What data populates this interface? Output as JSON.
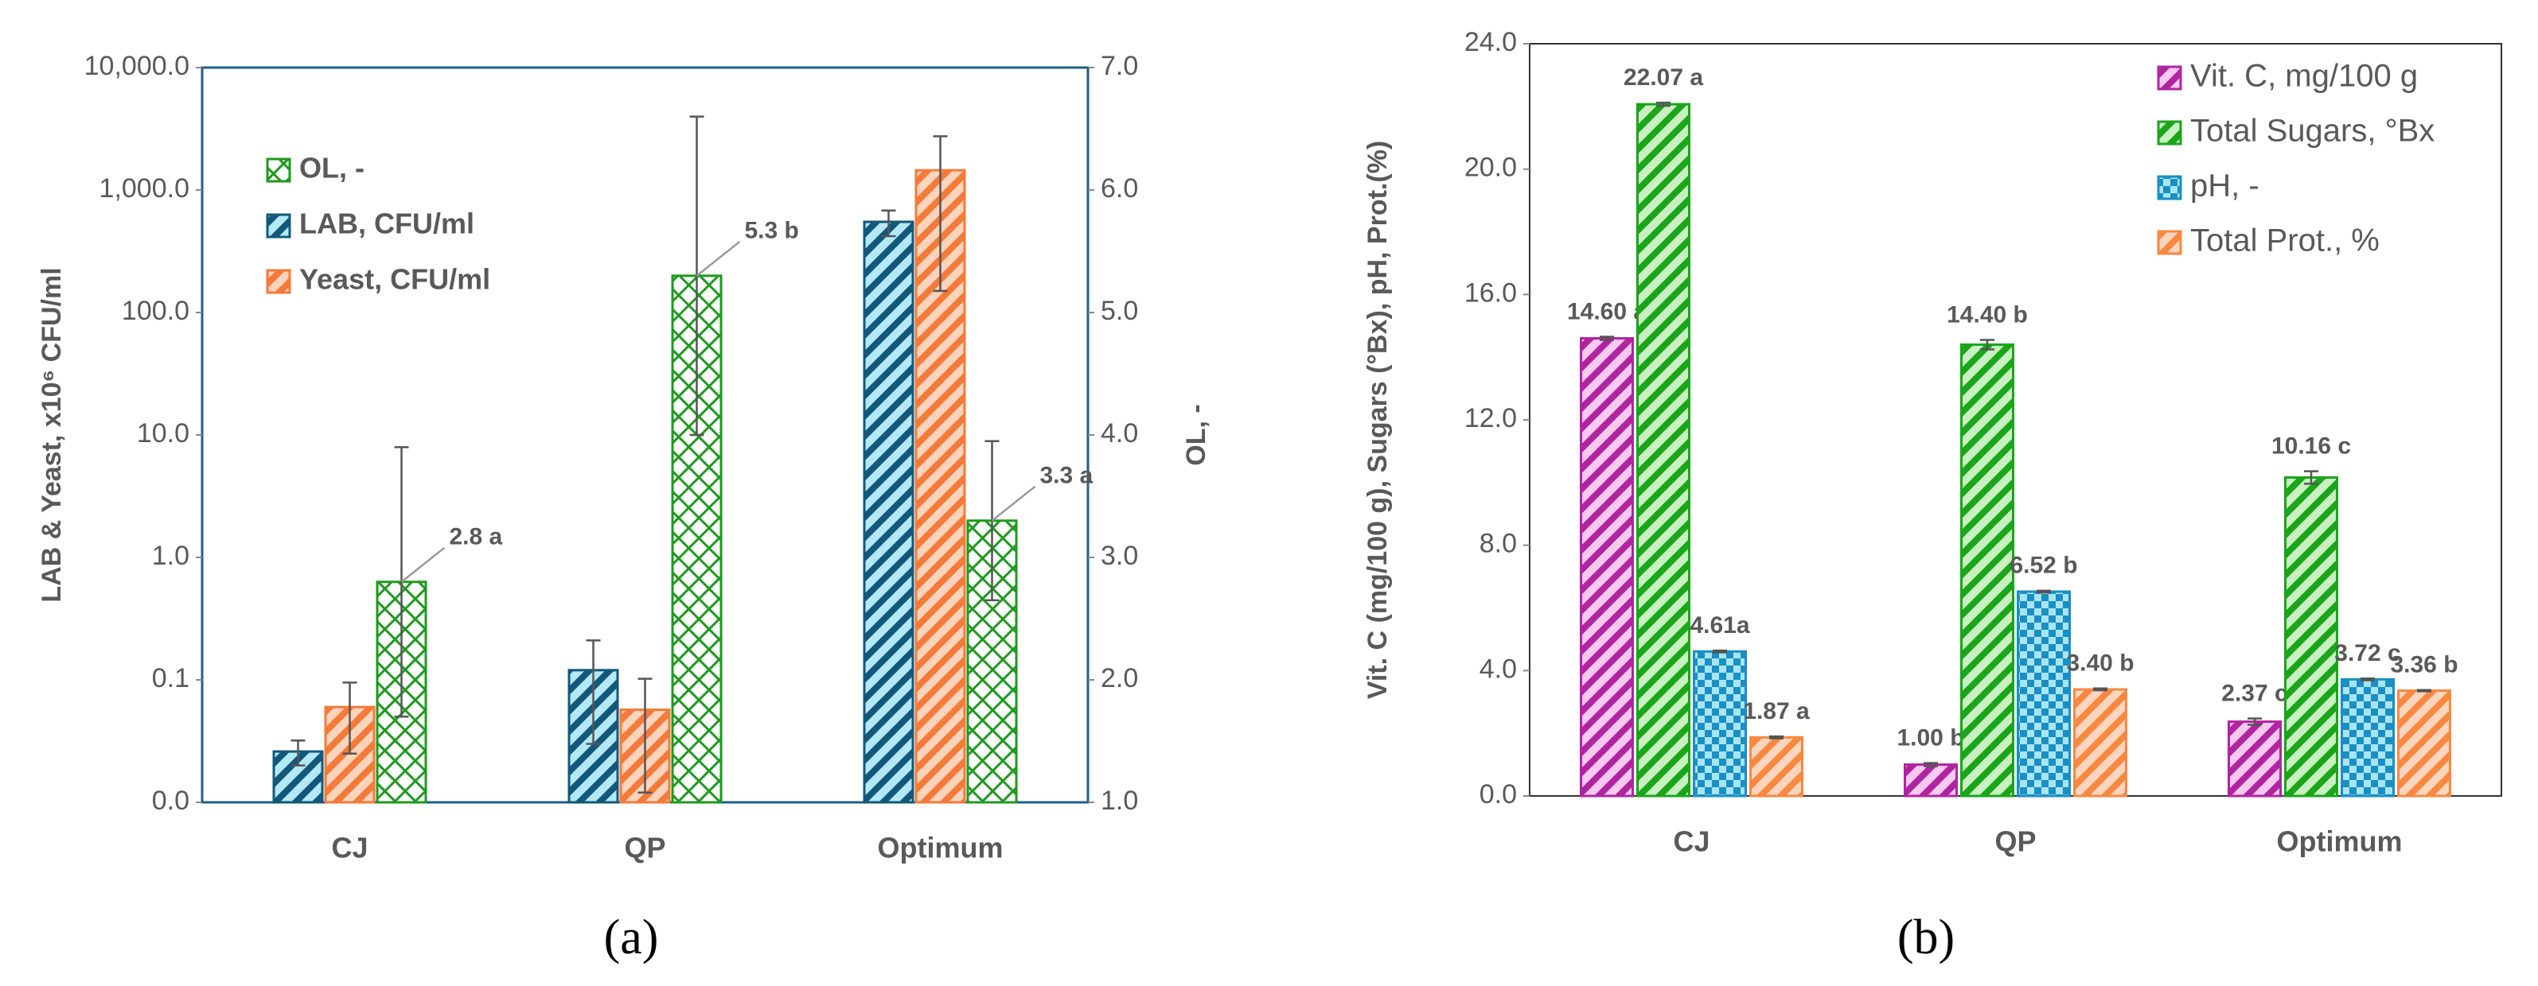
{
  "chart_data": [
    {
      "type": "bar",
      "caption": "(a)",
      "ylabel": "LAB & Yeast, x10⁶ CFU/ml",
      "y2label": "OL, -",
      "categories": [
        "CJ",
        "QP",
        "Optimum"
      ],
      "ylog": true,
      "legend": "upper left",
      "ylim": [
        0.01,
        10000
      ],
      "yticks": [
        {
          "value": 0.01,
          "label": "0.0"
        },
        {
          "value": 0.1,
          "label": "0.1"
        },
        {
          "value": 1,
          "label": "1.0"
        },
        {
          "value": 10,
          "label": "10.0"
        },
        {
          "value": 100,
          "label": "100.0"
        },
        {
          "value": 1000,
          "label": "1,000.0"
        },
        {
          "value": 10000,
          "label": "10,000.0"
        }
      ],
      "y2lim": [
        1,
        7
      ],
      "y2ticks": [
        {
          "value": 1,
          "label": "1.0"
        },
        {
          "value": 2,
          "label": "2.0"
        },
        {
          "value": 3,
          "label": "3.0"
        },
        {
          "value": 4,
          "label": "4.0"
        },
        {
          "value": 5,
          "label": "5.0"
        },
        {
          "value": 6,
          "label": "6.0"
        },
        {
          "value": 7,
          "label": "7.0"
        }
      ],
      "series": [
        {
          "name": "OL, -",
          "axis": "y2",
          "color": "#1e9a1e",
          "fill": "#ffffff",
          "pattern": "cross",
          "values": [
            2.8,
            5.3,
            3.3
          ],
          "errors": [
            1.1,
            1.3,
            0.65
          ],
          "value_labels": [
            "2.8 a",
            "5.3 b",
            "3.3 a"
          ]
        },
        {
          "name": "LAB, CFU/ml",
          "color": "#13587a",
          "fill": "#b3e8f7",
          "pattern": "stripes",
          "values": [
            0.026,
            0.12,
            550
          ],
          "errors": [
            0.006,
            0.09,
            130
          ]
        },
        {
          "name": "Yeast, CFU/ml",
          "color": "#f47a3a",
          "fill": "#fdd3bb",
          "pattern": "stripes",
          "values": [
            0.06,
            0.057,
            1450
          ],
          "errors": [
            0.035,
            0.045,
            1300
          ]
        }
      ]
    },
    {
      "type": "bar",
      "caption": "(b)",
      "ylabel": "Vit. C (mg/100 g), Sugars (°Bx), pH, Prot.(%)",
      "categories": [
        "CJ",
        "QP",
        "Optimum"
      ],
      "legend": "upper right",
      "ylim": [
        0,
        24
      ],
      "yticks": [
        {
          "value": 0,
          "label": "0.0"
        },
        {
          "value": 4,
          "label": "4.0"
        },
        {
          "value": 8,
          "label": "8.0"
        },
        {
          "value": 12,
          "label": "12.0"
        },
        {
          "value": 16,
          "label": "16.0"
        },
        {
          "value": 20,
          "label": "20.0"
        },
        {
          "value": 24,
          "label": "24.0"
        }
      ],
      "series": [
        {
          "name": "Vit. C, mg/100 g",
          "color": "#b0259f",
          "fill": "#f8c8ef",
          "pattern": "stripes",
          "values": [
            14.6,
            1.0,
            2.37
          ],
          "errors": [
            0.05,
            0.05,
            0.1
          ],
          "value_labels": [
            "14.60 a",
            "1.00 b",
            "2.37 c"
          ]
        },
        {
          "name": "Total Sugars, °Bx",
          "color": "#1aa51a",
          "fill": "#c8f0c0",
          "pattern": "stripes",
          "values": [
            22.07,
            14.4,
            10.16
          ],
          "errors": [
            0.05,
            0.15,
            0.2
          ],
          "value_labels": [
            "22.07 a",
            "14.40 b",
            "10.16 c"
          ]
        },
        {
          "name": "pH, -",
          "color": "#1a8fc4",
          "fill": "#a8e4f8",
          "pattern": "check",
          "values": [
            4.61,
            6.52,
            3.72
          ],
          "errors": [
            0.03,
            0.03,
            0.03
          ],
          "value_labels": [
            "4.61a",
            "6.52 b",
            "3.72 c"
          ]
        },
        {
          "name": "Total Prot., %",
          "color": "#f8883f",
          "fill": "#fdd5be",
          "pattern": "stripes",
          "values": [
            1.87,
            3.4,
            3.36
          ],
          "errors": [
            0.03,
            0.03,
            0.02
          ],
          "value_labels": [
            "1.87 a",
            "3.40 b",
            "3.36 b"
          ]
        }
      ]
    }
  ]
}
